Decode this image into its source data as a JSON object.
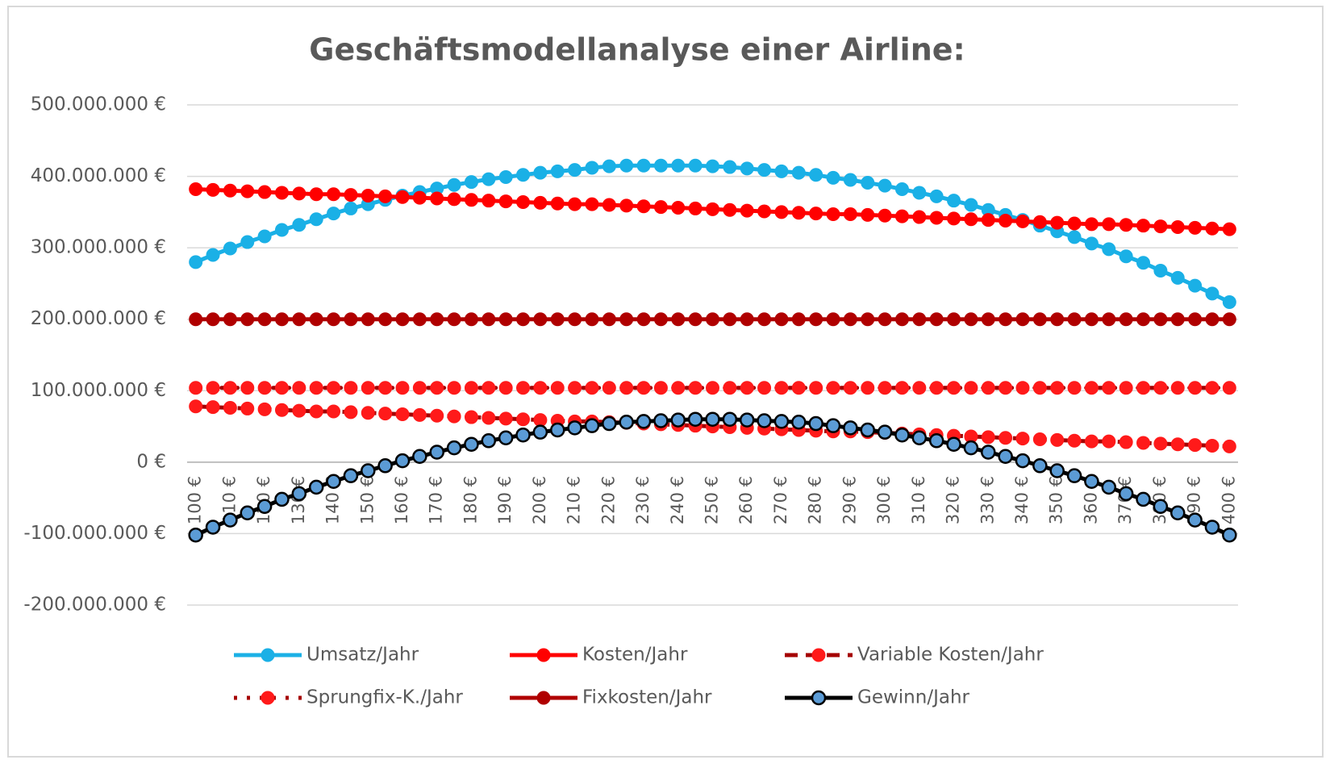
{
  "chart_data": {
    "type": "line",
    "title": "Geschäftsmodellanalyse einer Airline:",
    "categories": [
      "100 €",
      null,
      "110 €",
      null,
      "120 €",
      null,
      "130 €",
      null,
      "140 €",
      null,
      "150 €",
      null,
      "160 €",
      null,
      "170 €",
      null,
      "180 €",
      null,
      "190 €",
      null,
      "200 €",
      null,
      "210 €",
      null,
      "220 €",
      null,
      "230 €",
      null,
      "240 €",
      null,
      "250 €",
      null,
      "260 €",
      null,
      "270 €",
      null,
      "280 €",
      null,
      "290 €",
      null,
      "300 €",
      null,
      "310 €",
      null,
      "320 €",
      null,
      "330 €",
      null,
      "340 €",
      null,
      "350 €",
      null,
      "360 €",
      null,
      "370 €",
      null,
      "380 €",
      null,
      "390 €",
      null,
      "400 €"
    ],
    "series": [
      {
        "name": "Umsatz/Jahr",
        "color": "#1ab0e6",
        "marker_color": "#1ab0e6",
        "dash": "solid",
        "values": [
          280000000,
          290000000,
          299000000,
          308000000,
          316000000,
          325000000,
          332000000,
          340000000,
          348000000,
          355000000,
          361000000,
          367000000,
          373000000,
          378000000,
          383000000,
          388000000,
          392000000,
          396000000,
          399000000,
          402000000,
          405000000,
          407000000,
          409000000,
          412000000,
          414000000,
          415000000,
          415000000,
          415000000,
          415000000,
          415000000,
          414000000,
          413000000,
          411000000,
          409000000,
          407000000,
          405000000,
          402000000,
          398000000,
          395000000,
          391000000,
          387000000,
          382000000,
          377000000,
          372000000,
          366000000,
          360000000,
          353000000,
          346000000,
          339000000,
          331000000,
          323000000,
          315000000,
          306000000,
          298000000,
          288000000,
          279000000,
          268000000,
          258000000,
          247000000,
          236000000,
          224000000
        ]
      },
      {
        "name": "Kosten/Jahr",
        "color": "#ff0000",
        "marker_color": "#ff0000",
        "dash": "solid",
        "values": [
          382000000,
          381000000,
          380000000,
          379000000,
          378000000,
          377000000,
          376000000,
          375000000,
          375000000,
          374000000,
          373000000,
          372000000,
          371000000,
          370000000,
          369000000,
          368000000,
          367000000,
          366000000,
          365000000,
          364000000,
          363000000,
          362000000,
          361000000,
          361000000,
          360000000,
          359000000,
          358000000,
          357000000,
          356000000,
          355000000,
          354000000,
          353000000,
          352000000,
          351000000,
          350000000,
          349000000,
          348000000,
          347000000,
          347000000,
          346000000,
          345000000,
          344000000,
          343000000,
          342000000,
          341000000,
          340000000,
          339000000,
          338000000,
          337000000,
          336000000,
          335000000,
          334000000,
          333000000,
          333000000,
          332000000,
          331000000,
          330000000,
          329000000,
          328000000,
          327000000,
          326000000
        ]
      },
      {
        "name": "Variable Kosten/Jahr",
        "color": "#a50000",
        "marker_color": "#ff1a1a",
        "dash": "dash",
        "values": [
          78000000,
          77000000,
          76000000,
          75000000,
          74000000,
          73000000,
          72000000,
          71000000,
          71000000,
          70000000,
          69000000,
          68000000,
          67000000,
          66000000,
          65000000,
          64000000,
          63000000,
          62000000,
          61000000,
          60000000,
          59000000,
          58000000,
          57000000,
          57000000,
          56000000,
          55000000,
          54000000,
          53000000,
          52000000,
          51000000,
          50000000,
          49000000,
          48000000,
          47000000,
          46000000,
          45000000,
          44000000,
          43000000,
          43000000,
          42000000,
          41000000,
          40000000,
          39000000,
          38000000,
          37000000,
          36000000,
          35000000,
          34000000,
          33000000,
          32000000,
          31000000,
          30000000,
          29000000,
          29000000,
          28000000,
          27000000,
          26000000,
          25000000,
          24000000,
          23000000,
          22000000
        ]
      },
      {
        "name": "Sprungfix-K./Jahr",
        "color": "#a50000",
        "marker_color": "#ff1a1a",
        "dash": "dot",
        "values": [
          104000000,
          104000000,
          104000000,
          104000000,
          104000000,
          104000000,
          104000000,
          104000000,
          104000000,
          104000000,
          104000000,
          104000000,
          104000000,
          104000000,
          104000000,
          104000000,
          104000000,
          104000000,
          104000000,
          104000000,
          104000000,
          104000000,
          104000000,
          104000000,
          104000000,
          104000000,
          104000000,
          104000000,
          104000000,
          104000000,
          104000000,
          104000000,
          104000000,
          104000000,
          104000000,
          104000000,
          104000000,
          104000000,
          104000000,
          104000000,
          104000000,
          104000000,
          104000000,
          104000000,
          104000000,
          104000000,
          104000000,
          104000000,
          104000000,
          104000000,
          104000000,
          104000000,
          104000000,
          104000000,
          104000000,
          104000000,
          104000000,
          104000000,
          104000000,
          104000000,
          104000000
        ]
      },
      {
        "name": "Fixkosten/Jahr",
        "color": "#b00000",
        "marker_color": "#b00000",
        "dash": "solid",
        "values": [
          200000000,
          200000000,
          200000000,
          200000000,
          200000000,
          200000000,
          200000000,
          200000000,
          200000000,
          200000000,
          200000000,
          200000000,
          200000000,
          200000000,
          200000000,
          200000000,
          200000000,
          200000000,
          200000000,
          200000000,
          200000000,
          200000000,
          200000000,
          200000000,
          200000000,
          200000000,
          200000000,
          200000000,
          200000000,
          200000000,
          200000000,
          200000000,
          200000000,
          200000000,
          200000000,
          200000000,
          200000000,
          200000000,
          200000000,
          200000000,
          200000000,
          200000000,
          200000000,
          200000000,
          200000000,
          200000000,
          200000000,
          200000000,
          200000000,
          200000000,
          200000000,
          200000000,
          200000000,
          200000000,
          200000000,
          200000000,
          200000000,
          200000000,
          200000000,
          200000000,
          200000000
        ]
      },
      {
        "name": "Gewinn/Jahr",
        "color": "#000000",
        "marker_color": "#5b9bd5",
        "dash": "solid",
        "values": [
          -102000000,
          -91000000,
          -81000000,
          -71000000,
          -62000000,
          -52000000,
          -44000000,
          -35000000,
          -27000000,
          -19000000,
          -12000000,
          -5000000,
          2000000,
          8000000,
          14000000,
          20000000,
          25000000,
          30000000,
          34000000,
          38000000,
          42000000,
          45000000,
          48000000,
          51000000,
          54000000,
          56000000,
          57000000,
          58000000,
          59000000,
          60000000,
          60000000,
          60000000,
          59000000,
          58000000,
          57000000,
          56000000,
          54000000,
          51000000,
          48000000,
          45000000,
          42000000,
          38000000,
          34000000,
          30000000,
          25000000,
          20000000,
          14000000,
          8000000,
          2000000,
          -5000000,
          -12000000,
          -19000000,
          -27000000,
          -35000000,
          -44000000,
          -52000000,
          -62000000,
          -71000000,
          -81000000,
          -91000000,
          -102000000
        ]
      }
    ],
    "ylim": [
      -200000000,
      500000000
    ],
    "yticks": [
      {
        "value": -200000000,
        "label": "-200.000.000 €"
      },
      {
        "value": -100000000,
        "label": "-100.000.000 €"
      },
      {
        "value": 0,
        "label": "0 €"
      },
      {
        "value": 100000000,
        "label": "100.000.000 €"
      },
      {
        "value": 200000000,
        "label": "200.000.000 €"
      },
      {
        "value": 300000000,
        "label": "300.000.000 €"
      },
      {
        "value": 400000000,
        "label": "400.000.000 €"
      },
      {
        "value": 500000000,
        "label": "500.000.000 €"
      }
    ],
    "grid": true,
    "legend": "bottom"
  }
}
